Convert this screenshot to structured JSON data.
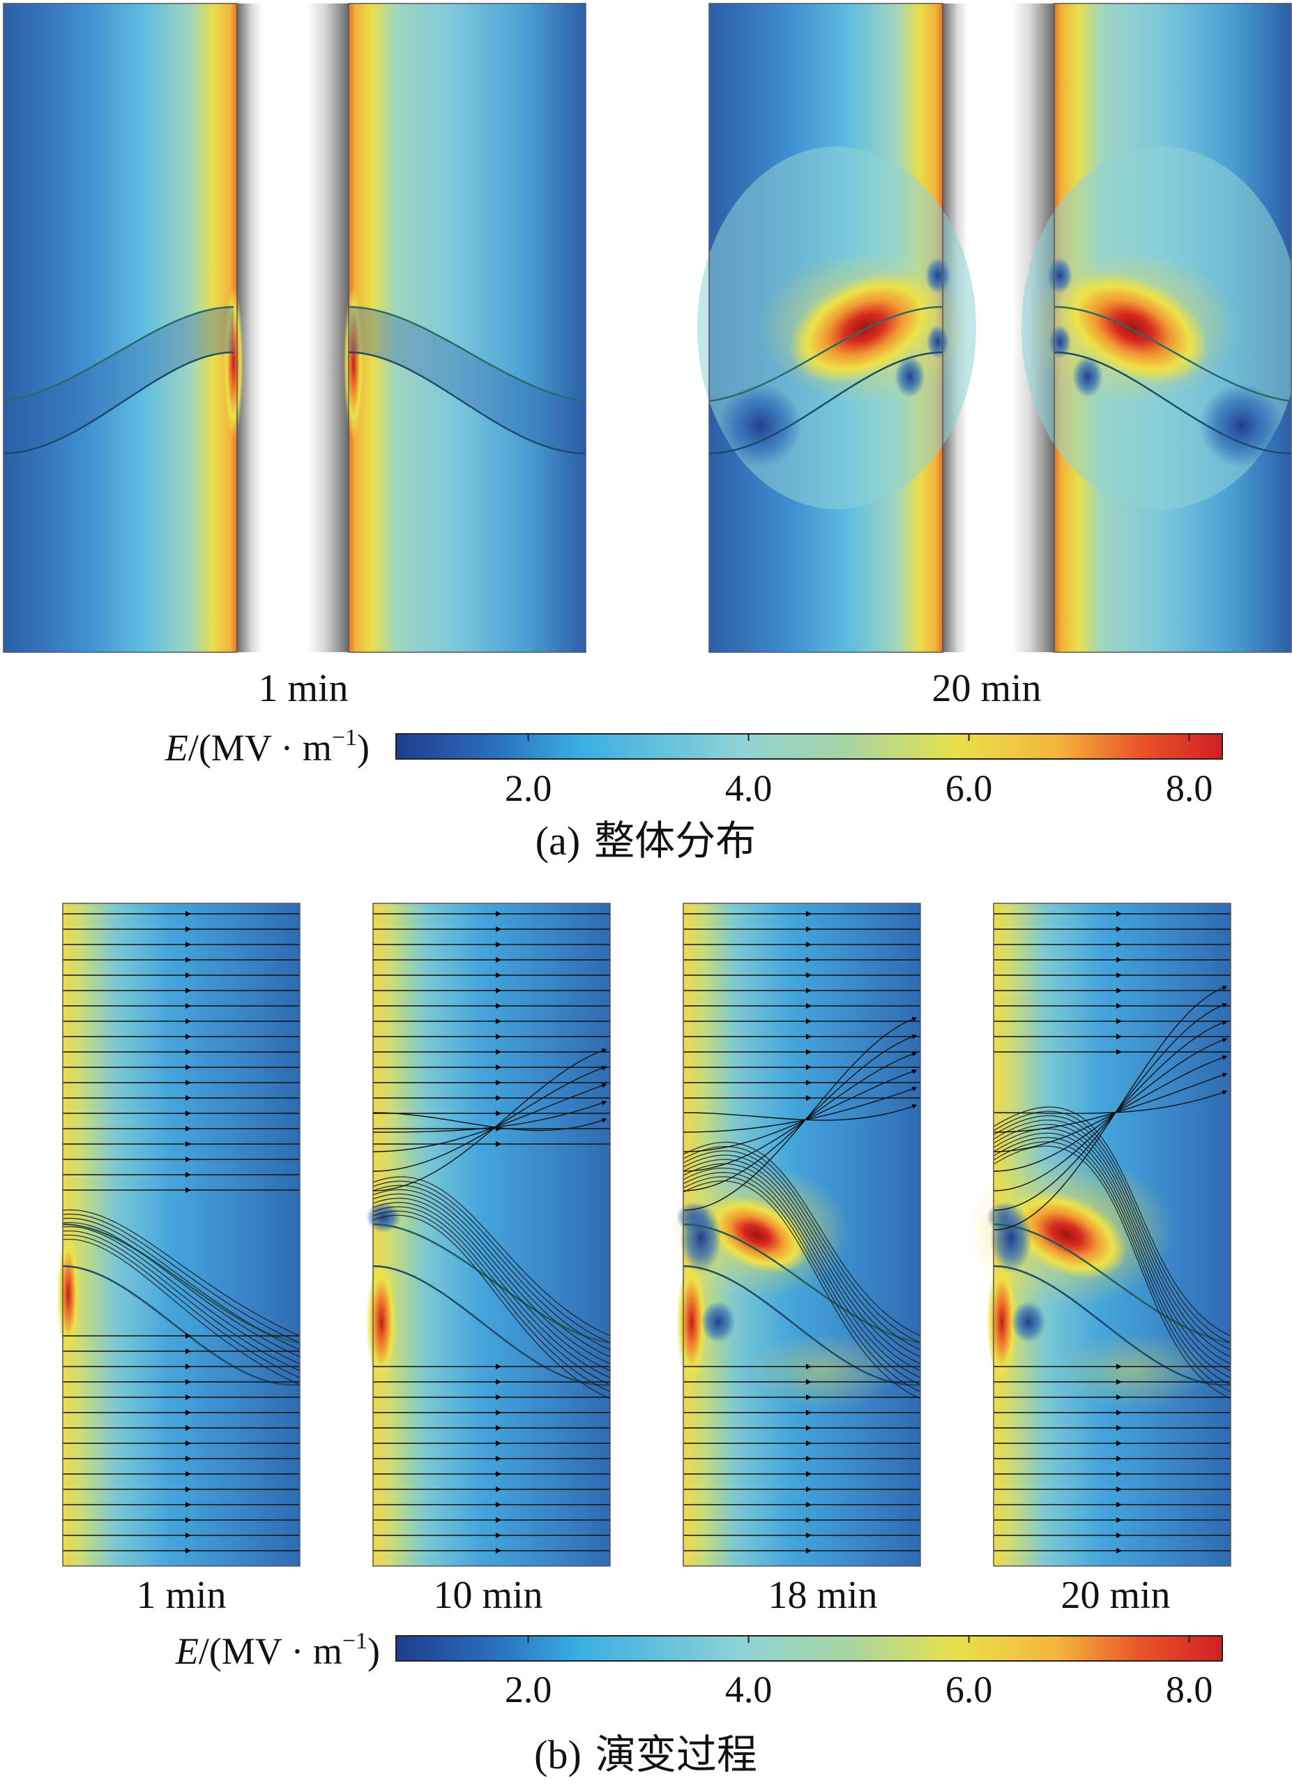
{
  "panel_a": {
    "caption_letter": "(a)",
    "caption_text": "整体分布",
    "plots": [
      {
        "time": "1 min"
      },
      {
        "time": "20 min"
      }
    ]
  },
  "panel_b": {
    "caption_letter": "(b)",
    "caption_text": "演变过程",
    "plots": [
      {
        "time": "1 min"
      },
      {
        "time": "10 min"
      },
      {
        "time": "18 min"
      },
      {
        "time": "20 min"
      }
    ]
  },
  "colorbar": {
    "label": "E/(MV·m⁻¹)",
    "label_symbol": "E",
    "label_unit": "/(MV · m",
    "label_sup": "−1",
    "label_close": ")",
    "ticks": [
      "2.0",
      "4.0",
      "6.0",
      "8.0"
    ],
    "range": [
      0.8,
      8.3
    ],
    "colors": [
      "#1e3e8c",
      "#2a6fbe",
      "#38aee2",
      "#8fd3d6",
      "#a8d5a0",
      "#e8e04a",
      "#f5b53c",
      "#e9552a",
      "#d31f22"
    ]
  }
}
